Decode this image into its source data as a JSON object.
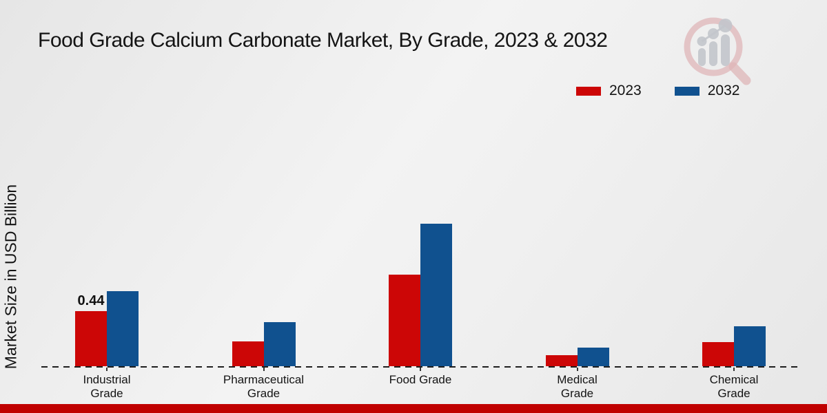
{
  "title": "Food Grade Calcium Carbonate Market, By Grade, 2023 & 2032",
  "ylabel": "Market Size in USD Billion",
  "legend": [
    {
      "label": "2023",
      "color": "#cc0606"
    },
    {
      "label": "2032",
      "color": "#10518f"
    }
  ],
  "footer": {
    "accent_color": "#c00000"
  },
  "logo": {
    "name": "market-research-magnifier-logo",
    "ring_color": "#dfb6b8",
    "bars_color": "#c3c6cc"
  },
  "chart_data": {
    "type": "bar",
    "categories": [
      "Industrial\nGrade",
      "Pharmaceutical\nGrade",
      "Food Grade",
      "Medical\nGrade",
      "Chemical\nGrade"
    ],
    "series": [
      {
        "name": "2023",
        "color": "#cc0606",
        "values": [
          0.44,
          0.2,
          0.73,
          0.09,
          0.19
        ],
        "labels": [
          "0.44",
          "",
          "",
          "",
          ""
        ]
      },
      {
        "name": "2032",
        "color": "#10518f",
        "values": [
          0.6,
          0.35,
          1.14,
          0.15,
          0.32
        ],
        "labels": [
          "",
          "",
          "",
          "",
          ""
        ]
      }
    ],
    "title": "Food Grade Calcium Carbonate Market, By Grade, 2023 & 2032",
    "xlabel": "",
    "ylabel": "Market Size in USD Billion",
    "ylim": [
      0,
      1.25
    ],
    "grid": false,
    "legend_position": "top-right",
    "baseline_style": "dashed",
    "y_axis_ticks_visible": false
  }
}
